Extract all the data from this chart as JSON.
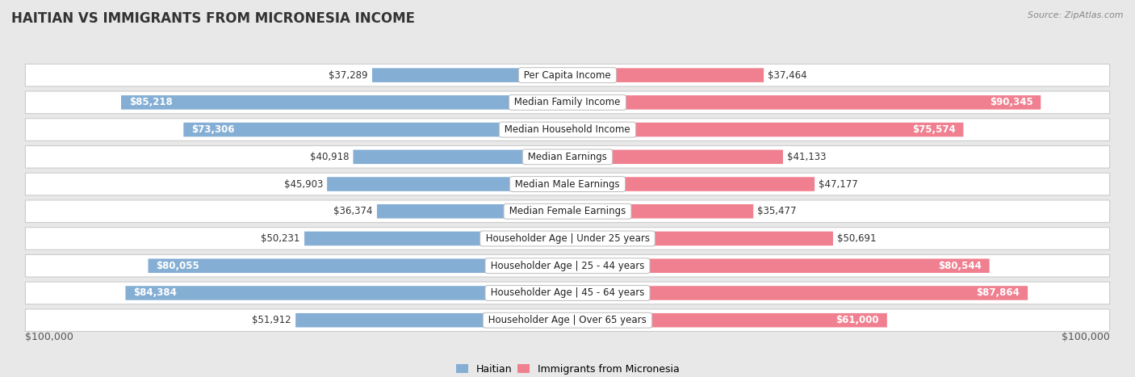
{
  "title": "HAITIAN VS IMMIGRANTS FROM MICRONESIA INCOME",
  "source": "Source: ZipAtlas.com",
  "categories": [
    "Per Capita Income",
    "Median Family Income",
    "Median Household Income",
    "Median Earnings",
    "Median Male Earnings",
    "Median Female Earnings",
    "Householder Age | Under 25 years",
    "Householder Age | 25 - 44 years",
    "Householder Age | 45 - 64 years",
    "Householder Age | Over 65 years"
  ],
  "haitian_values": [
    37289,
    85218,
    73306,
    40918,
    45903,
    36374,
    50231,
    80055,
    84384,
    51912
  ],
  "micronesia_values": [
    37464,
    90345,
    75574,
    41133,
    47177,
    35477,
    50691,
    80544,
    87864,
    61000
  ],
  "haitian_color": "#85aed4",
  "micronesia_color": "#f08090",
  "haitian_label": "Haitian",
  "micronesia_label": "Immigrants from Micronesia",
  "max_value": 100000,
  "bg_color": "#e8e8e8",
  "row_bg_color": "#ffffff",
  "title_fontsize": 12,
  "value_fontsize": 8.5,
  "cat_fontsize": 8.5,
  "axis_label": "$100,000",
  "haitian_inside_threshold": 60000,
  "micronesia_inside_threshold": 60000
}
